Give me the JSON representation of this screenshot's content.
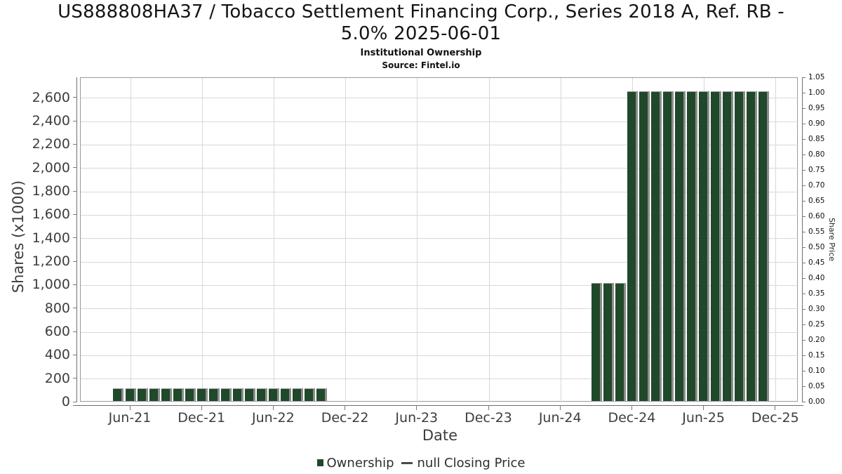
{
  "header": {
    "title_line1": "US888808HA37 / Tobacco Settlement Financing Corp., Series 2018 A, Ref. RB -",
    "title_line2": "5.0% 2025-06-01",
    "subtitle": "Institutional Ownership",
    "source": "Source: Fintel.io"
  },
  "chart_data": {
    "type": "bar",
    "title": "US888808HA37 / Tobacco Settlement Financing Corp., Series 2018 A, Ref. RB - 5.0% 2025-06-01",
    "subtitle": "Institutional Ownership",
    "source": "Source: Fintel.io",
    "xlabel": "Date",
    "ylabel_left": "Shares (x1000)",
    "ylabel_right": "Share Price",
    "grid": true,
    "legend_position": "bottom-center",
    "x_ticks": [
      "Jun-21",
      "Dec-21",
      "Jun-22",
      "Dec-22",
      "Jun-23",
      "Dec-23",
      "Jun-24",
      "Dec-24",
      "Jun-25",
      "Dec-25"
    ],
    "y_ticks_left": [
      0,
      200,
      400,
      600,
      800,
      1000,
      1200,
      1400,
      1600,
      1800,
      2000,
      2200,
      2400,
      2600
    ],
    "y_ticks_right": [
      "0.00",
      "0.05",
      "0.10",
      "0.15",
      "0.20",
      "0.25",
      "0.30",
      "0.35",
      "0.40",
      "0.45",
      "0.50",
      "0.55",
      "0.60",
      "0.65",
      "0.70",
      "0.75",
      "0.80",
      "0.85",
      "0.90",
      "0.95",
      "1.00",
      "1.05"
    ],
    "ylim_left": [
      0,
      2772
    ],
    "ylim_right": [
      0,
      1.05
    ],
    "bar_color": "#20482a",
    "bar_shadow_color": "#8c8c8c",
    "legend": [
      {
        "label": "Ownership",
        "type": "bar",
        "color": "#20482a"
      },
      {
        "label": "null Closing Price",
        "type": "line",
        "color": "#4a4a4a"
      }
    ],
    "bars": [
      {
        "month": "May-21",
        "value": 100
      },
      {
        "month": "Jun-21",
        "value": 100
      },
      {
        "month": "Jul-21",
        "value": 100
      },
      {
        "month": "Aug-21",
        "value": 100
      },
      {
        "month": "Sep-21",
        "value": 100
      },
      {
        "month": "Oct-21",
        "value": 100
      },
      {
        "month": "Nov-21",
        "value": 100
      },
      {
        "month": "Dec-21",
        "value": 100
      },
      {
        "month": "Jan-22",
        "value": 100
      },
      {
        "month": "Feb-22",
        "value": 100
      },
      {
        "month": "Mar-22",
        "value": 100
      },
      {
        "month": "Apr-22",
        "value": 100
      },
      {
        "month": "May-22",
        "value": 100
      },
      {
        "month": "Jun-22",
        "value": 100
      },
      {
        "month": "Jul-22",
        "value": 100
      },
      {
        "month": "Aug-22",
        "value": 100
      },
      {
        "month": "Sep-22",
        "value": 100
      },
      {
        "month": "Oct-22",
        "value": 100
      },
      {
        "month": "Sep-24",
        "value": 1000
      },
      {
        "month": "Oct-24",
        "value": 1000
      },
      {
        "month": "Nov-24",
        "value": 1000
      },
      {
        "month": "Dec-24",
        "value": 2640
      },
      {
        "month": "Jan-25",
        "value": 2640
      },
      {
        "month": "Feb-25",
        "value": 2640
      },
      {
        "month": "Mar-25",
        "value": 2640
      },
      {
        "month": "Apr-25",
        "value": 2640
      },
      {
        "month": "May-25",
        "value": 2640
      },
      {
        "month": "Jun-25",
        "value": 2640
      },
      {
        "month": "Jul-25",
        "value": 2640
      },
      {
        "month": "Aug-25",
        "value": 2640
      },
      {
        "month": "Sep-25",
        "value": 2640
      },
      {
        "month": "Oct-25",
        "value": 2640
      },
      {
        "month": "Nov-25",
        "value": 2640
      }
    ]
  }
}
